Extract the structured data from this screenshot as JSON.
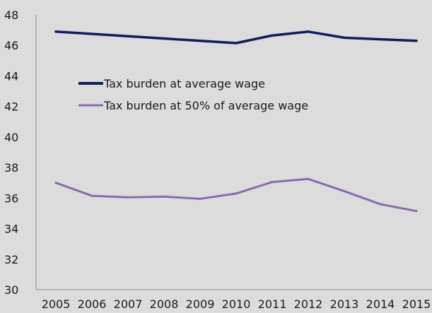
{
  "chart_data": {
    "type": "line",
    "x": [
      "2005",
      "2006",
      "2007",
      "2008",
      "2009",
      "2010",
      "2011",
      "2012",
      "2013",
      "2014",
      "2015"
    ],
    "ylim": [
      30,
      48
    ],
    "yticks": [
      "30",
      "32",
      "34",
      "36",
      "38",
      "40",
      "42",
      "44",
      "46",
      "48"
    ],
    "grid": false,
    "legend_position": "upper-left",
    "series": [
      {
        "name": "Tax burden at average wage",
        "color": "#0d1f5c",
        "values": [
          46.9,
          46.75,
          46.6,
          46.45,
          46.3,
          46.15,
          46.65,
          46.9,
          46.5,
          46.4,
          46.3
        ]
      },
      {
        "name": "Tax burden at 50% of average wage",
        "color": "#8a6aaf",
        "values": [
          37.0,
          36.15,
          36.05,
          36.1,
          35.95,
          36.3,
          37.05,
          37.25,
          36.45,
          35.6,
          35.15
        ]
      }
    ]
  }
}
